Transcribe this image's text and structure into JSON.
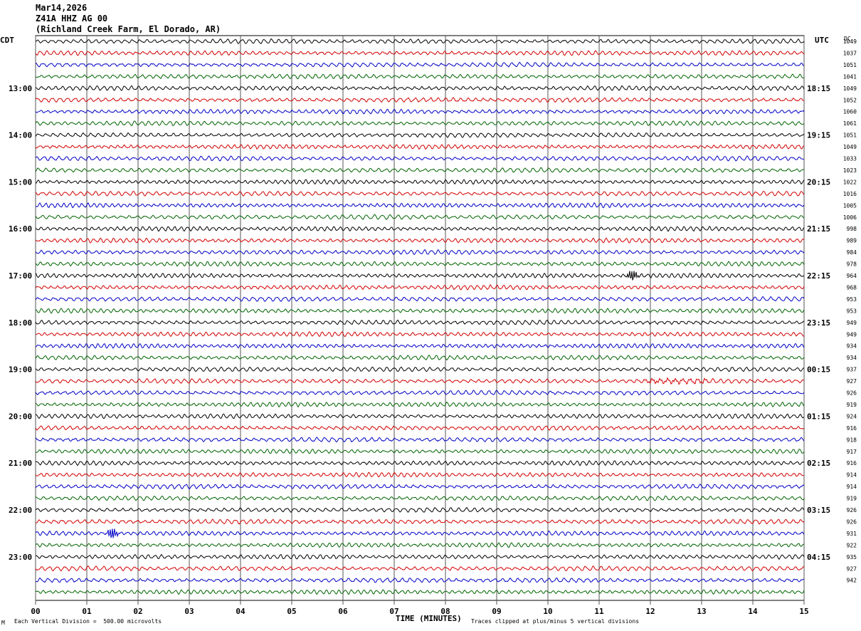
{
  "header": {
    "date": "Mar14,2026",
    "station": "Z41A HHZ AG 00",
    "location": "(Richland Creek Farm, El Dorado, AR)"
  },
  "left_zone_label": "CDT",
  "right_zone_label": "UTC",
  "right_column_label": "DC",
  "footer": {
    "scale_note": "Each Vertical Division =  500.00 microvolts",
    "x_axis_title": "TIME (MINUTES)",
    "clip_note": "Traces clipped at plus/minus 5 vertical divisions",
    "corner_mark": "M"
  },
  "chart_data": {
    "type": "line",
    "title": "",
    "xlabel": "TIME (MINUTES)",
    "ylabel": "",
    "xlim": [
      0,
      15
    ],
    "x_ticks": [
      "00",
      "01",
      "02",
      "03",
      "04",
      "05",
      "06",
      "07",
      "08",
      "09",
      "10",
      "11",
      "12",
      "13",
      "14",
      "15"
    ],
    "trace_colors": [
      "#000000",
      "#d40000",
      "#0000c8",
      "#006400"
    ],
    "traces_per_hour": 4,
    "trace_count": 48,
    "grid": true,
    "left_time_labels": [
      "13:00",
      "14:00",
      "15:00",
      "16:00",
      "17:00",
      "18:00",
      "19:00",
      "20:00",
      "21:00",
      "22:00",
      "23:00"
    ],
    "right_time_labels": [
      "18:15",
      "19:15",
      "20:15",
      "21:15",
      "22:15",
      "23:15",
      "00:15",
      "01:15",
      "02:15",
      "03:15",
      "04:15"
    ],
    "label_trace_indices": [
      4,
      8,
      12,
      16,
      20,
      24,
      28,
      32,
      36,
      40,
      44
    ],
    "dc_offsets": [
      "1049",
      "1037",
      "1051",
      "1041",
      "1049",
      "1052",
      "1060",
      "1061",
      "1051",
      "1049",
      "1033",
      "1023",
      "1022",
      "1016",
      "1005",
      "1006",
      "998",
      "989",
      "984",
      "978",
      "964",
      "968",
      "953",
      "953",
      "949",
      "949",
      "934",
      "934",
      "937",
      "927",
      "926",
      "919",
      "924",
      "916",
      "918",
      "917",
      "916",
      "914",
      "914",
      "919",
      "926",
      "926",
      "931",
      "922",
      "935",
      "927",
      "942"
    ],
    "events": [
      {
        "trace": 42,
        "minute": 1.5,
        "note": "spike"
      },
      {
        "trace": 20,
        "minute": 11.65,
        "note": "spike"
      },
      {
        "trace": 29,
        "minute": 12.5,
        "note": "burst"
      }
    ]
  }
}
